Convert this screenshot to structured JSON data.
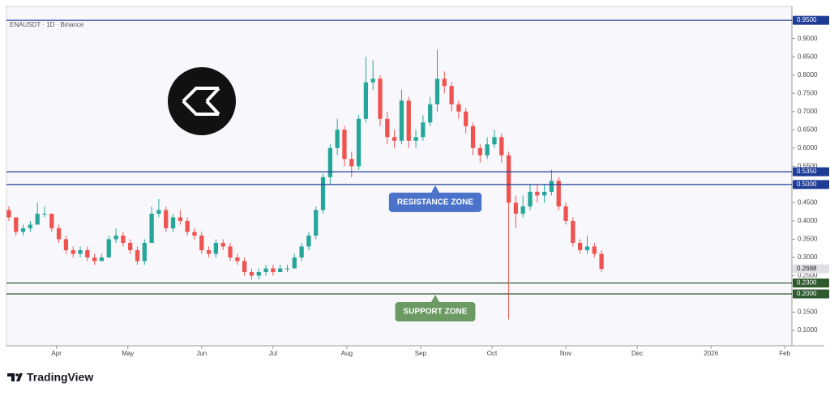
{
  "chart_data": {
    "type": "candlestick",
    "symbol": "ENAUSDT · 1D · Binance",
    "up_color": "#26a69a",
    "down_color": "#ef5350",
    "x": [
      -20,
      -17,
      -14,
      -11,
      -8,
      -5,
      -2,
      1,
      4,
      7,
      10,
      13,
      16,
      19,
      22,
      25,
      28,
      31,
      34,
      37,
      40,
      43,
      46,
      49,
      52,
      55,
      58,
      61,
      64,
      67,
      70,
      73,
      76,
      79,
      82,
      85,
      88,
      91,
      94,
      97,
      100,
      103,
      106,
      109,
      112,
      115,
      118,
      121,
      124,
      127,
      130,
      133,
      136,
      139,
      142,
      145,
      148,
      151,
      154,
      157,
      160,
      163,
      166,
      169,
      172,
      175,
      178,
      181,
      184,
      187,
      190,
      193,
      196,
      199,
      202,
      205,
      208,
      211,
      214,
      217,
      220,
      223,
      226,
      229
    ],
    "candles": [
      [
        0.43,
        0.44,
        0.4,
        0.41
      ],
      [
        0.41,
        0.41,
        0.36,
        0.37
      ],
      [
        0.37,
        0.39,
        0.36,
        0.38
      ],
      [
        0.38,
        0.4,
        0.37,
        0.39
      ],
      [
        0.39,
        0.45,
        0.39,
        0.42
      ],
      [
        0.42,
        0.44,
        0.41,
        0.42
      ],
      [
        0.42,
        0.42,
        0.37,
        0.38
      ],
      [
        0.38,
        0.39,
        0.34,
        0.35
      ],
      [
        0.35,
        0.36,
        0.31,
        0.32
      ],
      [
        0.32,
        0.33,
        0.3,
        0.31
      ],
      [
        0.31,
        0.33,
        0.3,
        0.32
      ],
      [
        0.32,
        0.33,
        0.29,
        0.3
      ],
      [
        0.3,
        0.31,
        0.28,
        0.29
      ],
      [
        0.29,
        0.31,
        0.29,
        0.3
      ],
      [
        0.3,
        0.36,
        0.3,
        0.35
      ],
      [
        0.35,
        0.38,
        0.34,
        0.36
      ],
      [
        0.36,
        0.37,
        0.33,
        0.34
      ],
      [
        0.34,
        0.35,
        0.31,
        0.32
      ],
      [
        0.32,
        0.33,
        0.28,
        0.29
      ],
      [
        0.29,
        0.35,
        0.28,
        0.34
      ],
      [
        0.34,
        0.44,
        0.34,
        0.42
      ],
      [
        0.42,
        0.46,
        0.41,
        0.43
      ],
      [
        0.43,
        0.44,
        0.37,
        0.38
      ],
      [
        0.38,
        0.42,
        0.37,
        0.41
      ],
      [
        0.41,
        0.43,
        0.39,
        0.4
      ],
      [
        0.4,
        0.41,
        0.36,
        0.37
      ],
      [
        0.37,
        0.38,
        0.35,
        0.36
      ],
      [
        0.36,
        0.37,
        0.31,
        0.32
      ],
      [
        0.32,
        0.33,
        0.3,
        0.31
      ],
      [
        0.31,
        0.35,
        0.3,
        0.34
      ],
      [
        0.34,
        0.35,
        0.32,
        0.33
      ],
      [
        0.33,
        0.34,
        0.29,
        0.3
      ],
      [
        0.3,
        0.31,
        0.28,
        0.29
      ],
      [
        0.29,
        0.3,
        0.25,
        0.26
      ],
      [
        0.26,
        0.27,
        0.24,
        0.25
      ],
      [
        0.25,
        0.27,
        0.24,
        0.26
      ],
      [
        0.26,
        0.28,
        0.25,
        0.27
      ],
      [
        0.27,
        0.28,
        0.25,
        0.26
      ],
      [
        0.26,
        0.28,
        0.26,
        0.27
      ],
      [
        0.27,
        0.28,
        0.26,
        0.27
      ],
      [
        0.27,
        0.31,
        0.27,
        0.3
      ],
      [
        0.3,
        0.34,
        0.29,
        0.33
      ],
      [
        0.33,
        0.37,
        0.32,
        0.36
      ],
      [
        0.36,
        0.44,
        0.35,
        0.43
      ],
      [
        0.43,
        0.53,
        0.42,
        0.52
      ],
      [
        0.52,
        0.61,
        0.5,
        0.6
      ],
      [
        0.6,
        0.68,
        0.58,
        0.65
      ],
      [
        0.65,
        0.66,
        0.55,
        0.57
      ],
      [
        0.57,
        0.59,
        0.52,
        0.55
      ],
      [
        0.55,
        0.69,
        0.54,
        0.68
      ],
      [
        0.68,
        0.85,
        0.67,
        0.78
      ],
      [
        0.78,
        0.84,
        0.76,
        0.79
      ],
      [
        0.79,
        0.8,
        0.66,
        0.68
      ],
      [
        0.68,
        0.7,
        0.61,
        0.63
      ],
      [
        0.63,
        0.65,
        0.6,
        0.62
      ],
      [
        0.62,
        0.76,
        0.61,
        0.73
      ],
      [
        0.73,
        0.74,
        0.6,
        0.62
      ],
      [
        0.62,
        0.65,
        0.6,
        0.63
      ],
      [
        0.63,
        0.69,
        0.62,
        0.67
      ],
      [
        0.67,
        0.74,
        0.66,
        0.72
      ],
      [
        0.72,
        0.87,
        0.7,
        0.79
      ],
      [
        0.79,
        0.81,
        0.75,
        0.77
      ],
      [
        0.77,
        0.78,
        0.7,
        0.72
      ],
      [
        0.72,
        0.73,
        0.68,
        0.7
      ],
      [
        0.7,
        0.71,
        0.64,
        0.66
      ],
      [
        0.66,
        0.67,
        0.58,
        0.6
      ],
      [
        0.6,
        0.61,
        0.56,
        0.58
      ],
      [
        0.58,
        0.63,
        0.57,
        0.61
      ],
      [
        0.61,
        0.65,
        0.6,
        0.63
      ],
      [
        0.63,
        0.64,
        0.56,
        0.58
      ],
      [
        0.58,
        0.59,
        0.13,
        0.45
      ],
      [
        0.45,
        0.47,
        0.38,
        0.42
      ],
      [
        0.42,
        0.47,
        0.41,
        0.44
      ],
      [
        0.44,
        0.5,
        0.43,
        0.48
      ],
      [
        0.48,
        0.5,
        0.45,
        0.47
      ],
      [
        0.47,
        0.5,
        0.45,
        0.48
      ],
      [
        0.48,
        0.54,
        0.47,
        0.51
      ],
      [
        0.51,
        0.52,
        0.43,
        0.44
      ],
      [
        0.44,
        0.45,
        0.39,
        0.4
      ],
      [
        0.4,
        0.41,
        0.33,
        0.34
      ],
      [
        0.34,
        0.35,
        0.31,
        0.32
      ],
      [
        0.32,
        0.36,
        0.31,
        0.33
      ],
      [
        0.33,
        0.34,
        0.3,
        0.31
      ],
      [
        0.31,
        0.32,
        0.26,
        0.2688
      ]
    ],
    "xlim": [
      -21,
      309
    ],
    "xticks": [
      {
        "value": 0,
        "label": "Apr"
      },
      {
        "value": 30,
        "label": "May"
      },
      {
        "value": 61,
        "label": "Jun"
      },
      {
        "value": 91,
        "label": "Jul"
      },
      {
        "value": 122,
        "label": "Aug"
      },
      {
        "value": 153,
        "label": "Sep"
      },
      {
        "value": 183,
        "label": "Oct"
      },
      {
        "value": 214,
        "label": "Nov"
      },
      {
        "value": 244,
        "label": "Dec"
      },
      {
        "value": 275,
        "label": "2026"
      },
      {
        "value": 306,
        "label": "Feb"
      }
    ],
    "ylim": [
      0.058,
      0.988
    ],
    "yticks": [
      {
        "value": 0.9,
        "label": "0.9000"
      },
      {
        "value": 0.85,
        "label": "0.8500"
      },
      {
        "value": 0.8,
        "label": "0.8000"
      },
      {
        "value": 0.75,
        "label": "0.7500"
      },
      {
        "value": 0.7,
        "label": "0.7000"
      },
      {
        "value": 0.65,
        "label": "0.6500"
      },
      {
        "value": 0.6,
        "label": "0.6000"
      },
      {
        "value": 0.55,
        "label": "0.5500"
      },
      {
        "value": 0.45,
        "label": "0.4500"
      },
      {
        "value": 0.4,
        "label": "0.4000"
      },
      {
        "value": 0.35,
        "label": "0.3500"
      },
      {
        "value": 0.3,
        "label": "0.3000"
      },
      {
        "value": 0.25,
        "label": "0.2500"
      },
      {
        "value": 0.15,
        "label": "0.1500"
      },
      {
        "value": 0.1,
        "label": "0.1000"
      }
    ],
    "levels": [
      {
        "value": 0.95,
        "label": "0.9500",
        "color": "#1e3c96"
      },
      {
        "value": 0.535,
        "label": "0.5350",
        "color": "#1e3c96"
      },
      {
        "value": 0.5,
        "label": "0.5000",
        "color": "#1e3c96"
      },
      {
        "value": 0.23,
        "label": "0.2300",
        "color": "#2e5a2e"
      },
      {
        "value": 0.2,
        "label": "0.2000",
        "color": "#2e5a2e"
      }
    ],
    "last_price": {
      "value": 0.2688,
      "label": "0.2688"
    },
    "zones": [
      {
        "label": "RESISTANCE ZONE",
        "value": 0.5,
        "color": "#4a72c9"
      },
      {
        "label": "SUPPORT ZONE",
        "value": 0.2,
        "color": "#6b9a63"
      }
    ],
    "brand": "TradingView"
  }
}
